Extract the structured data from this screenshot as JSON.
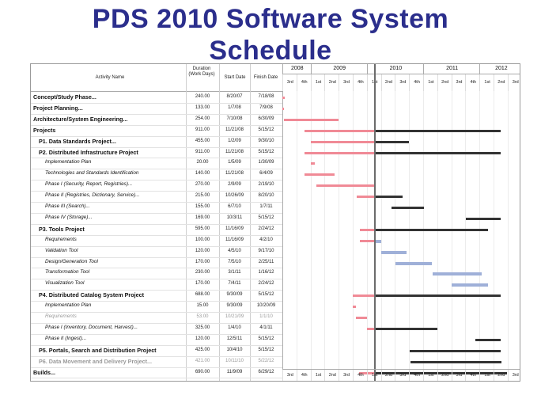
{
  "slide": {
    "title_line1": "PDS 2010 Software System",
    "title_line2": "Schedule"
  },
  "table": {
    "headers": {
      "activity": "Activity Name",
      "duration": "Duration (Work Days)",
      "start": "Start Date",
      "finish": "Finish Date"
    },
    "rows": [
      {
        "name": "Concept/Study Phase...",
        "duration": "240.00",
        "start": "8/20/07",
        "finish": "7/18/08",
        "style": "b",
        "indent": 0
      },
      {
        "name": "Project Planning...",
        "duration": "133.00",
        "start": "1/7/08",
        "finish": "7/9/08",
        "style": "b",
        "indent": 0
      },
      {
        "name": "Architecture/System Engineering...",
        "duration": "254.00",
        "start": "7/10/08",
        "finish": "6/30/09",
        "style": "b",
        "indent": 0
      },
      {
        "name": "Projects",
        "duration": "911.00",
        "start": "11/21/08",
        "finish": "5/15/12",
        "style": "b",
        "indent": 0
      },
      {
        "name": "P1. Data Standards Project...",
        "duration": "455.00",
        "start": "1/2/09",
        "finish": "9/30/10",
        "style": "b",
        "indent": 1
      },
      {
        "name": "P2. Distributed Infrastructure Project",
        "duration": "911.00",
        "start": "11/21/08",
        "finish": "5/15/12",
        "style": "b",
        "indent": 1
      },
      {
        "name": "Implementation Plan",
        "duration": "20.00",
        "start": "1/5/09",
        "finish": "1/30/09",
        "style": "i",
        "indent": 2
      },
      {
        "name": "Technologies and Standards Identification",
        "duration": "140.00",
        "start": "11/21/08",
        "finish": "6/4/09",
        "style": "i",
        "indent": 2
      },
      {
        "name": "Phase I (Security, Report, Registries)...",
        "duration": "270.00",
        "start": "2/9/09",
        "finish": "2/19/10",
        "style": "i",
        "indent": 2
      },
      {
        "name": "Phase II (Registries, Dictionary, Service)...",
        "duration": "215.00",
        "start": "10/26/09",
        "finish": "8/20/10",
        "style": "i",
        "indent": 2
      },
      {
        "name": "Phase III (Search)...",
        "duration": "155.00",
        "start": "6/7/10",
        "finish": "1/7/11",
        "style": "i",
        "indent": 2
      },
      {
        "name": "Phase IV (Storage)...",
        "duration": "169.00",
        "start": "10/3/11",
        "finish": "5/15/12",
        "style": "i",
        "indent": 2
      },
      {
        "name": "P3. Tools Project",
        "duration": "595.00",
        "start": "11/16/09",
        "finish": "2/24/12",
        "style": "b",
        "indent": 1
      },
      {
        "name": "Requirements",
        "duration": "100.00",
        "start": "11/16/09",
        "finish": "4/2/10",
        "style": "i",
        "indent": 2
      },
      {
        "name": "Validation Tool",
        "duration": "120.00",
        "start": "4/5/10",
        "finish": "9/17/10",
        "style": "i",
        "indent": 2
      },
      {
        "name": "Design/Generation Tool",
        "duration": "170.00",
        "start": "7/5/10",
        "finish": "2/25/11",
        "style": "i",
        "indent": 2
      },
      {
        "name": "Transformation Tool",
        "duration": "230.00",
        "start": "3/1/11",
        "finish": "1/16/12",
        "style": "i",
        "indent": 2
      },
      {
        "name": "Visualization Tool",
        "duration": "170.00",
        "start": "7/4/11",
        "finish": "2/24/12",
        "style": "i",
        "indent": 2
      },
      {
        "name": "P4. Distributed Catalog System Project",
        "duration": "688.00",
        "start": "9/30/09",
        "finish": "5/15/12",
        "style": "b",
        "indent": 1
      },
      {
        "name": "Implementation Plan",
        "duration": "15.00",
        "start": "9/30/09",
        "finish": "10/20/09",
        "style": "i",
        "indent": 2
      },
      {
        "name": "Requirements",
        "duration": "53.00",
        "start": "10/21/09",
        "finish": "1/1/10",
        "style": "i",
        "indent": 2,
        "gray": true
      },
      {
        "name": "Phase I (Inventory, Document, Harvest)...",
        "duration": "325.00",
        "start": "1/4/10",
        "finish": "4/1/11",
        "style": "i",
        "indent": 2
      },
      {
        "name": "Phase II (Ingest)...",
        "duration": "120.00",
        "start": "12/5/11",
        "finish": "5/15/12",
        "style": "i",
        "indent": 2
      },
      {
        "name": "P5. Portals, Search and Distribution Project",
        "duration": "425.00",
        "start": "10/4/10",
        "finish": "5/15/12",
        "style": "b",
        "indent": 1
      },
      {
        "name": "P6. Data Movement and Delivery Project...",
        "duration": "421.00",
        "start": "10/11/10",
        "finish": "5/22/12",
        "style": "b",
        "indent": 1,
        "gray": true
      },
      {
        "name": "Builds...",
        "duration": "690.00",
        "start": "11/9/09",
        "finish": "6/29/12",
        "style": "b",
        "indent": 0
      }
    ]
  },
  "timeline": {
    "years": [
      "2008",
      "2009",
      "2010",
      "2011",
      "2012"
    ],
    "quarters": [
      "3rd",
      "4th",
      "1st",
      "2nd",
      "3rd",
      "4th",
      "1st",
      "2nd",
      "3rd",
      "4th",
      "1st",
      "2nd",
      "3rd",
      "4th",
      "1st",
      "2nd",
      "3rd"
    ]
  },
  "colors": {
    "title": "#2b2e8c",
    "complete": "#f08a96",
    "remaining": "#333333",
    "tools": "#9fb0d8"
  }
}
